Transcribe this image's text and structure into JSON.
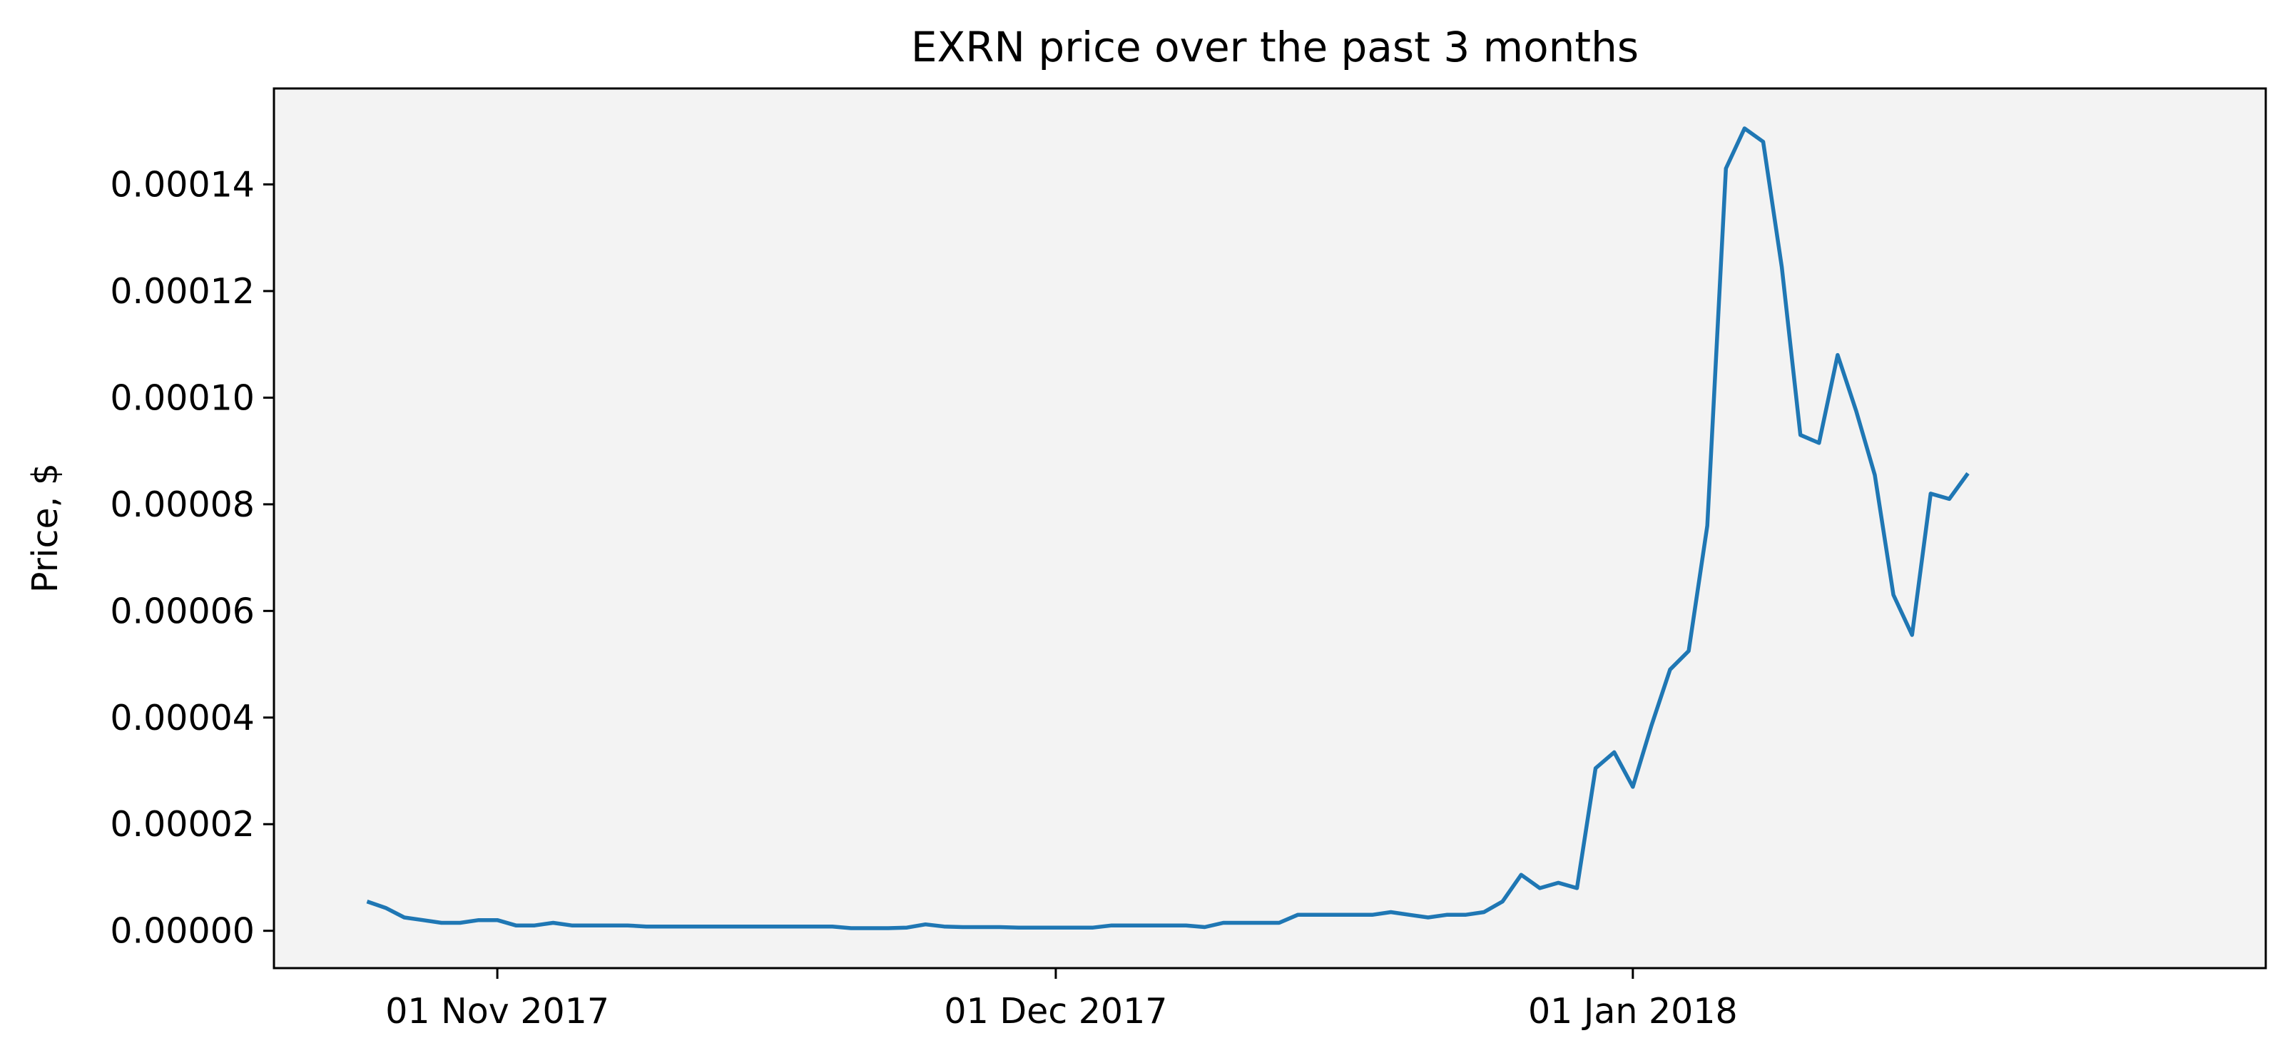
{
  "chart_data": {
    "type": "line",
    "title": "EXRN price over the past 3 months",
    "xlabel": "",
    "ylabel": "Price, $",
    "x_ticks": [
      {
        "date": "2017-11-01",
        "label": "01 Nov 2017"
      },
      {
        "date": "2017-12-01",
        "label": "01 Dec 2017"
      },
      {
        "date": "2018-01-01",
        "label": "01 Jan 2018"
      }
    ],
    "y_ticks": [
      {
        "value": 0.0,
        "label": "0.00000"
      },
      {
        "value": 2e-05,
        "label": "0.00002"
      },
      {
        "value": 4e-05,
        "label": "0.00004"
      },
      {
        "value": 6e-05,
        "label": "0.00006"
      },
      {
        "value": 8e-05,
        "label": "0.00008"
      },
      {
        "value": 0.0001,
        "label": "0.00010"
      },
      {
        "value": 0.00012,
        "label": "0.00012"
      },
      {
        "value": 0.00014,
        "label": "0.00014"
      }
    ],
    "xlim": [
      "2017-10-20",
      "2018-02-04"
    ],
    "ylim": [
      -7e-06,
      0.000158
    ],
    "grid": false,
    "background_color": "#f3f3f3",
    "line_color": "#1f77b4",
    "series": [
      {
        "name": "",
        "points": [
          [
            "2017-10-25",
            5.5e-06
          ],
          [
            "2017-10-26",
            4.3e-06
          ],
          [
            "2017-10-27",
            2.5e-06
          ],
          [
            "2017-10-28",
            2e-06
          ],
          [
            "2017-10-29",
            1.5e-06
          ],
          [
            "2017-10-30",
            1.5e-06
          ],
          [
            "2017-10-31",
            2e-06
          ],
          [
            "2017-11-01",
            2e-06
          ],
          [
            "2017-11-02",
            1e-06
          ],
          [
            "2017-11-03",
            1e-06
          ],
          [
            "2017-11-04",
            1.5e-06
          ],
          [
            "2017-11-05",
            1e-06
          ],
          [
            "2017-11-06",
            1e-06
          ],
          [
            "2017-11-07",
            1e-06
          ],
          [
            "2017-11-08",
            1e-06
          ],
          [
            "2017-11-09",
            8e-07
          ],
          [
            "2017-11-10",
            8e-07
          ],
          [
            "2017-11-11",
            8e-07
          ],
          [
            "2017-11-12",
            8e-07
          ],
          [
            "2017-11-13",
            8e-07
          ],
          [
            "2017-11-14",
            8e-07
          ],
          [
            "2017-11-15",
            8e-07
          ],
          [
            "2017-11-16",
            8e-07
          ],
          [
            "2017-11-17",
            8e-07
          ],
          [
            "2017-11-18",
            8e-07
          ],
          [
            "2017-11-19",
            8e-07
          ],
          [
            "2017-11-20",
            5e-07
          ],
          [
            "2017-11-21",
            5e-07
          ],
          [
            "2017-11-22",
            5e-07
          ],
          [
            "2017-11-23",
            6e-07
          ],
          [
            "2017-11-24",
            1.2e-06
          ],
          [
            "2017-11-25",
            8e-07
          ],
          [
            "2017-11-26",
            7e-07
          ],
          [
            "2017-11-27",
            7e-07
          ],
          [
            "2017-11-28",
            7e-07
          ],
          [
            "2017-11-29",
            6e-07
          ],
          [
            "2017-11-30",
            6e-07
          ],
          [
            "2017-12-01",
            6e-07
          ],
          [
            "2017-12-02",
            6e-07
          ],
          [
            "2017-12-03",
            6e-07
          ],
          [
            "2017-12-04",
            1e-06
          ],
          [
            "2017-12-05",
            1e-06
          ],
          [
            "2017-12-06",
            1e-06
          ],
          [
            "2017-12-07",
            1e-06
          ],
          [
            "2017-12-08",
            1e-06
          ],
          [
            "2017-12-09",
            7e-07
          ],
          [
            "2017-12-10",
            1.5e-06
          ],
          [
            "2017-12-11",
            1.5e-06
          ],
          [
            "2017-12-12",
            1.5e-06
          ],
          [
            "2017-12-13",
            1.5e-06
          ],
          [
            "2017-12-14",
            3e-06
          ],
          [
            "2017-12-15",
            3e-06
          ],
          [
            "2017-12-16",
            3e-06
          ],
          [
            "2017-12-17",
            3e-06
          ],
          [
            "2017-12-18",
            3e-06
          ],
          [
            "2017-12-19",
            3.5e-06
          ],
          [
            "2017-12-20",
            3e-06
          ],
          [
            "2017-12-21",
            2.5e-06
          ],
          [
            "2017-12-22",
            3e-06
          ],
          [
            "2017-12-23",
            3e-06
          ],
          [
            "2017-12-24",
            3.5e-06
          ],
          [
            "2017-12-25",
            5.5e-06
          ],
          [
            "2017-12-26",
            1.05e-05
          ],
          [
            "2017-12-27",
            8e-06
          ],
          [
            "2017-12-28",
            9e-06
          ],
          [
            "2017-12-29",
            8e-06
          ],
          [
            "2017-12-30",
            3.05e-05
          ],
          [
            "2017-12-31",
            3.35e-05
          ],
          [
            "2018-01-01",
            2.7e-05
          ],
          [
            "2018-01-02",
            3.85e-05
          ],
          [
            "2018-01-03",
            4.9e-05
          ],
          [
            "2018-01-04",
            5.25e-05
          ],
          [
            "2018-01-05",
            7.6e-05
          ],
          [
            "2018-01-06",
            0.000143
          ],
          [
            "2018-01-07",
            0.0001505
          ],
          [
            "2018-01-08",
            0.000148
          ],
          [
            "2018-01-09",
            0.0001245
          ],
          [
            "2018-01-10",
            9.3e-05
          ],
          [
            "2018-01-11",
            9.15e-05
          ],
          [
            "2018-01-12",
            0.000108
          ],
          [
            "2018-01-13",
            9.75e-05
          ],
          [
            "2018-01-14",
            8.55e-05
          ],
          [
            "2018-01-15",
            6.3e-05
          ],
          [
            "2018-01-16",
            5.55e-05
          ],
          [
            "2018-01-17",
            8.2e-05
          ],
          [
            "2018-01-18",
            8.1e-05
          ],
          [
            "2018-01-19",
            8.58e-05
          ]
        ]
      }
    ]
  }
}
